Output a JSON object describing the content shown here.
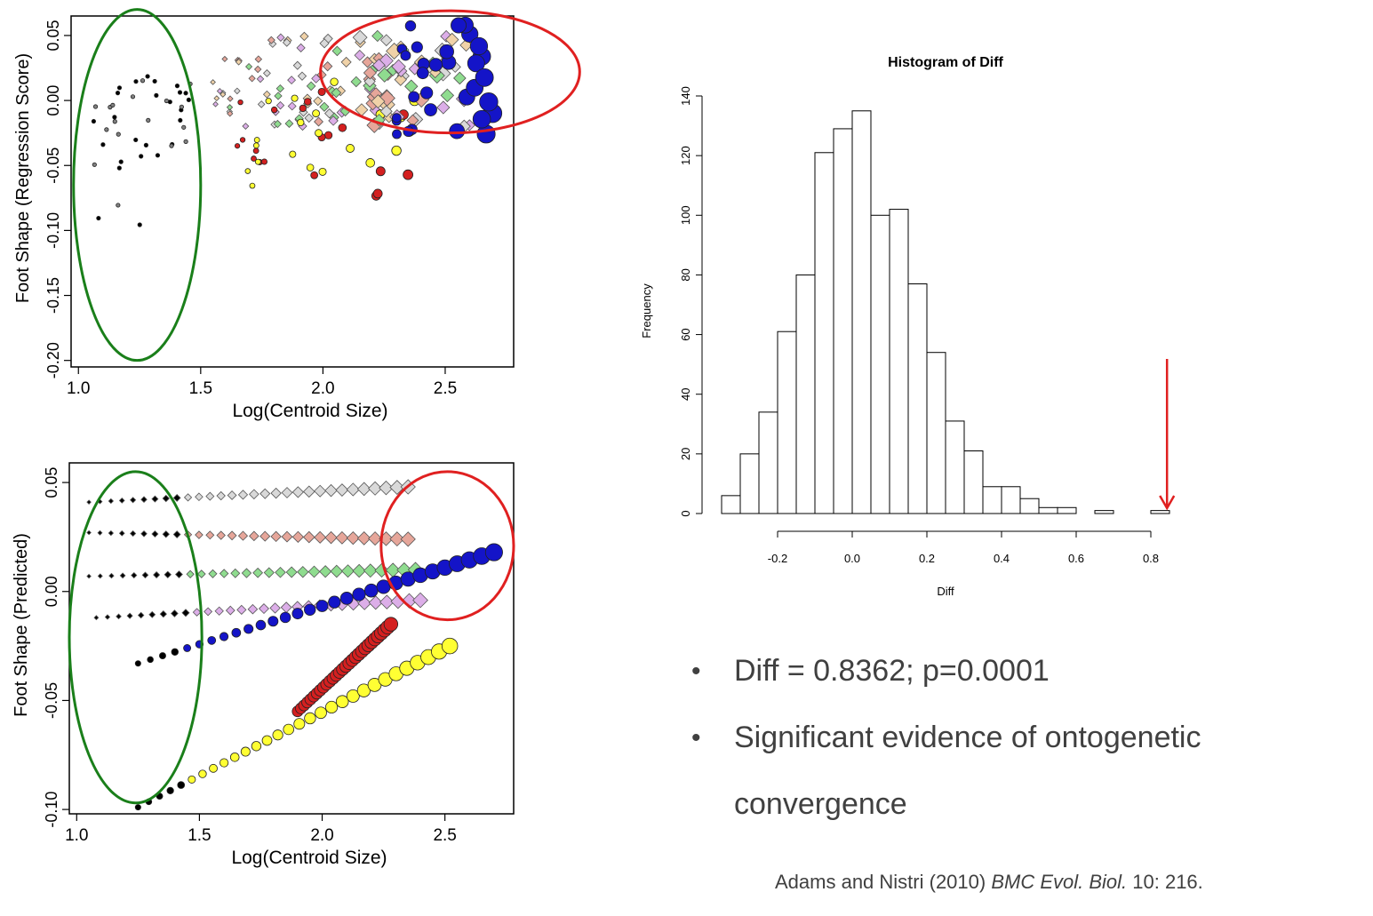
{
  "chart_data": [
    {
      "type": "scatter",
      "title": "",
      "xlabel": "Log(Centroid Size)",
      "ylabel": "Foot Shape (Regression Score)",
      "xlim": [
        0.97,
        2.78
      ],
      "ylim": [
        -0.205,
        0.065
      ],
      "xticks": [
        "1.0",
        "1.5",
        "2.0",
        "2.5"
      ],
      "yticks": [
        "-0.20",
        "-0.15",
        "-0.10",
        "-0.05",
        "0.00",
        "0.05"
      ],
      "grid": false,
      "annotations": [
        {
          "shape": "ellipse",
          "color": "#1a7f1a",
          "cx": 1.24,
          "cy": -0.065,
          "rx": 0.26,
          "ry": 0.135
        },
        {
          "shape": "ellipse",
          "color": "#e02020",
          "cx": 2.52,
          "cy": 0.022,
          "rx": 0.53,
          "ry": 0.047
        }
      ]
    },
    {
      "type": "scatter",
      "title": "",
      "xlabel": "Log(Centroid Size)",
      "ylabel": "Foot Shape (Predicted)",
      "xlim": [
        0.97,
        2.78
      ],
      "ylim": [
        -0.102,
        0.059
      ],
      "xticks": [
        "1.0",
        "1.5",
        "2.0",
        "2.5"
      ],
      "yticks": [
        "-0.10",
        "-0.05",
        "0.00",
        "0.05"
      ],
      "grid": false,
      "annotations": [
        {
          "shape": "ellipse",
          "color": "#1a7f1a",
          "cx": 1.24,
          "cy": -0.021,
          "rx": 0.27,
          "ry": 0.076
        },
        {
          "shape": "ellipse",
          "color": "#e02020",
          "cx": 2.51,
          "cy": 0.021,
          "rx": 0.27,
          "ry": 0.034
        }
      ]
    },
    {
      "type": "bar",
      "title": "Histogram of Diff",
      "xlabel": "Diff",
      "ylabel": "Frequency",
      "bin_width": 0.05,
      "bin_start": -0.35,
      "values": [
        6,
        20,
        34,
        61,
        80,
        121,
        129,
        135,
        100,
        102,
        77,
        54,
        31,
        21,
        9,
        9,
        5,
        2,
        2,
        0,
        1,
        0,
        0,
        1
      ],
      "xlim": [
        -0.35,
        0.85
      ],
      "ylim": [
        0,
        140
      ],
      "xticks": [
        "-0.2",
        "0.0",
        "0.2",
        "0.4",
        "0.6",
        "0.8"
      ],
      "yticks": [
        "0",
        "20",
        "40",
        "60",
        "80",
        "100",
        "120",
        "140"
      ],
      "annotations": [
        {
          "shape": "arrow",
          "color": "#e02020",
          "x": 0.8362,
          "from_y": 52,
          "to_y": 1
        }
      ]
    }
  ],
  "bullets": [
    "Diff = 0.8362; p=0.0001",
    "Significant evidence of ontogenetic convergence"
  ],
  "citation": {
    "authors": "Adams and Nistri (2010) ",
    "journal": "BMC Evol. Biol.",
    "rest": " 10: 216."
  },
  "colors": [
    "#000000",
    "#808080",
    "#8fdc8f",
    "#e6a69a",
    "#dcaee8",
    "#f0d2a8",
    "#ffff33",
    "#d42020",
    "#1414c8",
    "#d9d9d9"
  ]
}
